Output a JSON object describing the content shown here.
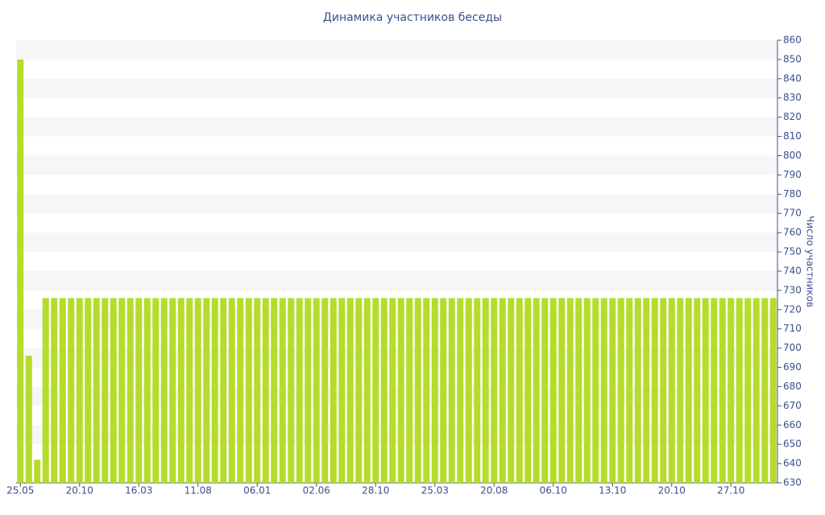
{
  "chart_data": {
    "type": "bar",
    "title": "Динамика участников беседы",
    "y_label": "Число участников",
    "categories": [
      "25.05",
      null,
      null,
      null,
      null,
      null,
      null,
      "20.10",
      null,
      null,
      null,
      null,
      null,
      null,
      "16.03",
      null,
      null,
      null,
      null,
      null,
      null,
      "11.08",
      null,
      null,
      null,
      null,
      null,
      null,
      "06.01",
      null,
      null,
      null,
      null,
      null,
      null,
      "02.06",
      null,
      null,
      null,
      null,
      null,
      null,
      "28.10",
      null,
      null,
      null,
      null,
      null,
      null,
      "25.03",
      null,
      null,
      null,
      null,
      null,
      null,
      "20.08",
      null,
      null,
      null,
      null,
      null,
      null,
      "06.10",
      null,
      null,
      null,
      null,
      null,
      null,
      "13.10",
      null,
      null,
      null,
      null,
      null,
      null,
      "20.10",
      null,
      null,
      null,
      null,
      null,
      null,
      "27.10",
      null,
      null,
      null,
      null,
      null
    ],
    "values": [
      850,
      696,
      642,
      726,
      726,
      726,
      726,
      726,
      726,
      726,
      726,
      726,
      726,
      726,
      726,
      726,
      726,
      726,
      726,
      726,
      726,
      726,
      726,
      726,
      726,
      726,
      726,
      726,
      726,
      726,
      726,
      726,
      726,
      726,
      726,
      726,
      726,
      726,
      726,
      726,
      726,
      726,
      726,
      726,
      726,
      726,
      726,
      726,
      726,
      726,
      726,
      726,
      726,
      726,
      726,
      726,
      726,
      726,
      726,
      726,
      726,
      726,
      726,
      726,
      726,
      726,
      726,
      726,
      726,
      726,
      726,
      726,
      726,
      726,
      726,
      726,
      726,
      726,
      726,
      726,
      726,
      726,
      726,
      726,
      726,
      726,
      726,
      726,
      726,
      726
    ],
    "color": "#b5dc2a",
    "ylim": [
      630,
      860
    ],
    "yticks": [
      630,
      640,
      650,
      660,
      670,
      680,
      690,
      700,
      710,
      720,
      730,
      740,
      750,
      760,
      770,
      780,
      790,
      800,
      810,
      820,
      830,
      840,
      850,
      860
    ],
    "grid": "bands",
    "y_axis_side": "right"
  }
}
